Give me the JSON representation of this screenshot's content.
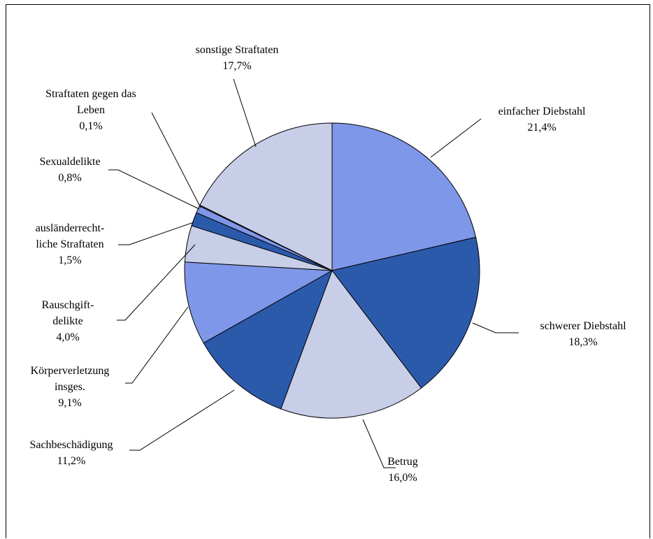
{
  "chart_data": {
    "type": "pie",
    "title": "",
    "slices": [
      {
        "lines": [
          "einfacher Diebstahl",
          "21,4%"
        ],
        "value": 21.4,
        "color": "#7F97E9"
      },
      {
        "lines": [
          "schwerer Diebstahl",
          "18,3%"
        ],
        "value": 18.3,
        "color": "#2C5AAB"
      },
      {
        "lines": [
          "Betrug",
          "16,0%"
        ],
        "value": 16.0,
        "color": "#C8CDE8"
      },
      {
        "lines": [
          "Sachbeschädigung",
          "11,2%"
        ],
        "value": 11.2,
        "color": "#2C5AAB"
      },
      {
        "lines": [
          "Körperverletzung",
          "insges.",
          "9,1%"
        ],
        "value": 9.1,
        "color": "#7F97E9"
      },
      {
        "lines": [
          "Rauschgift-",
          "delikte",
          "4,0%"
        ],
        "value": 4.0,
        "color": "#C8CDE8"
      },
      {
        "lines": [
          "ausländerrecht-",
          "liche Straftaten",
          "1,5%"
        ],
        "value": 1.5,
        "color": "#2C5AAB"
      },
      {
        "lines": [
          "Sexualdelikte",
          "0,8%"
        ],
        "value": 0.8,
        "color": "#7F97E9"
      },
      {
        "lines": [
          "Straftaten gegen das",
          "Leben",
          "0,1%"
        ],
        "value": 0.1,
        "color": "#C8CDE8"
      },
      {
        "lines": [
          "sonstige Straftaten",
          "17,7%"
        ],
        "value": 17.7,
        "color": "#C8CDE8"
      }
    ]
  }
}
